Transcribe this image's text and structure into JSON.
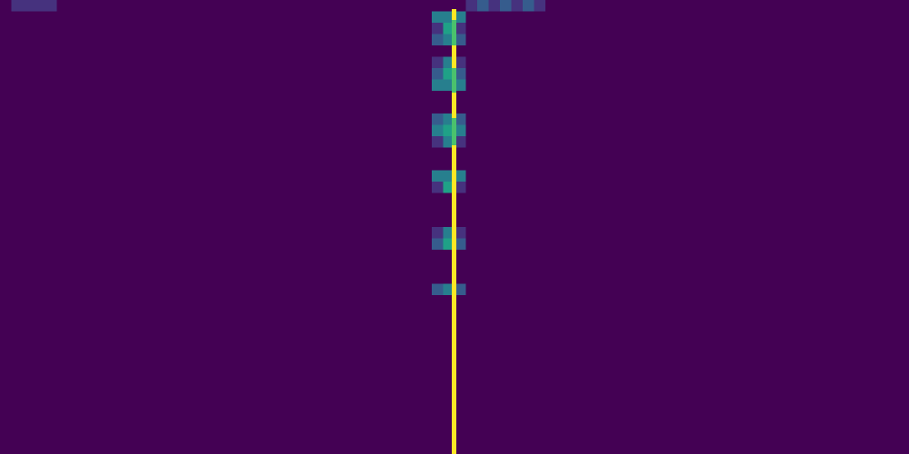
{
  "image": {
    "kind": "viridis-colormap-raster",
    "colormap": "viridis",
    "colors": {
      "background": "#440154",
      "low": "#46327e",
      "low_mid": "#365c8d",
      "mid": "#277f8e",
      "mid_high": "#1fa187",
      "high": "#4ac16d",
      "very_high": "#a0da39",
      "max": "#fde725"
    },
    "grid": {
      "columns": 80,
      "rows": 40
    },
    "features": {
      "main_line": {
        "column": 40,
        "intensity": "max"
      },
      "blobs": [
        {
          "row": 1,
          "half_width": 1,
          "rows": 3
        },
        {
          "row": 5,
          "half_width": 1,
          "rows": 3
        },
        {
          "row": 10,
          "half_width": 1,
          "rows": 3
        },
        {
          "row": 15,
          "half_width": 1,
          "rows": 2
        },
        {
          "row": 20,
          "half_width": 1,
          "rows": 2
        },
        {
          "row": 25,
          "half_width": 1,
          "rows": 1
        }
      ],
      "top_strip_left": {
        "from_col": 1,
        "to_col": 4,
        "row": 0
      },
      "top_strip_right": {
        "from_col": 41,
        "to_col": 47,
        "row": 0
      }
    }
  }
}
